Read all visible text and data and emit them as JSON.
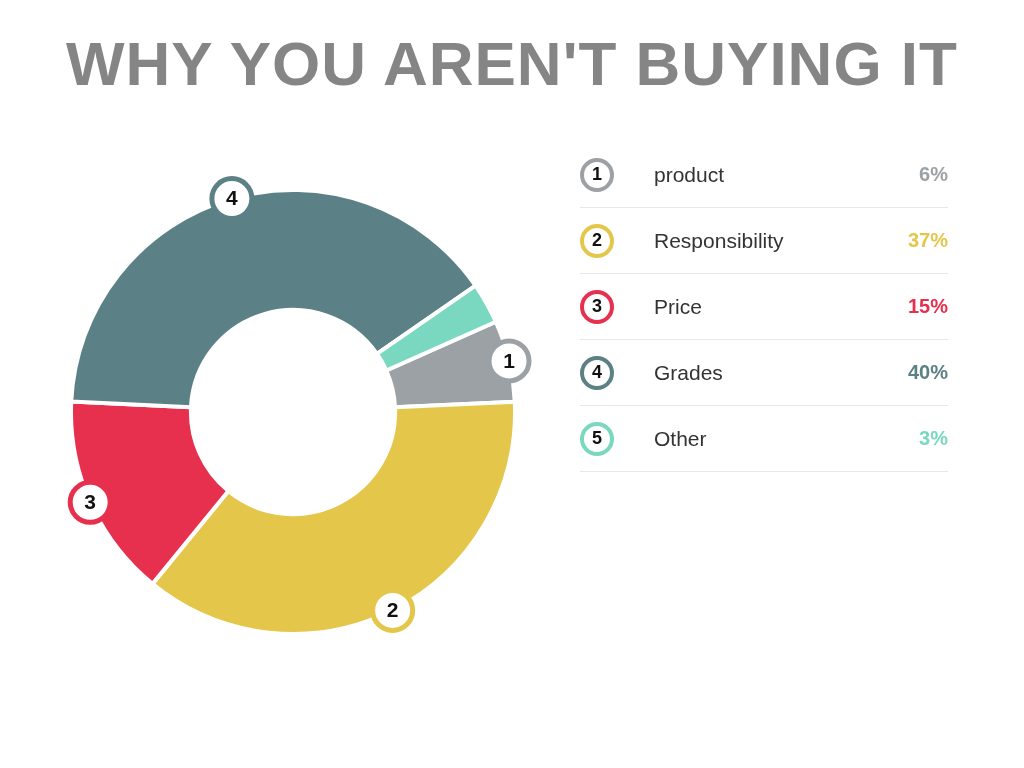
{
  "chart_data": {
    "type": "donut",
    "title": "WHY YOU AREN'T BUYING IT",
    "categories": [
      "product",
      "Responsibility",
      "Price",
      "Grades",
      "Other"
    ],
    "values": [
      6,
      37,
      15,
      40,
      3
    ],
    "colors": [
      "#9ca1a5",
      "#e4c64a",
      "#e6304d",
      "#5b8186",
      "#7ad8c0"
    ],
    "value_labels": [
      "6%",
      "37%",
      "15%",
      "40%",
      "3%"
    ],
    "annotations": [
      "1",
      "2",
      "3",
      "4",
      "5"
    ],
    "legend": "right"
  }
}
